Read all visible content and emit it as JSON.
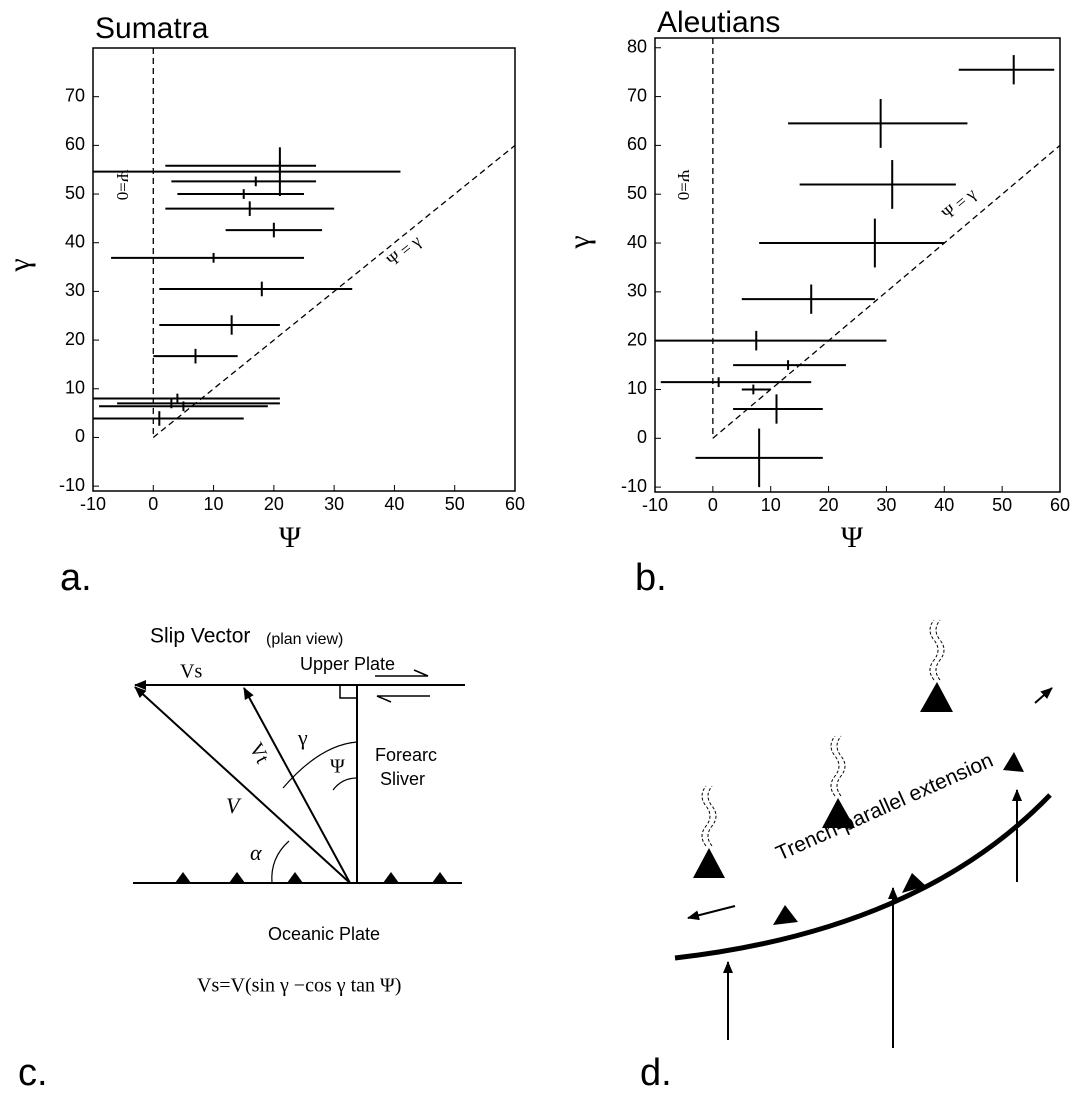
{
  "chart_data": [
    {
      "type": "errorbar",
      "title": "Sumatra",
      "panel_label": "a.",
      "x_label": "Ψ",
      "y_label": "γ",
      "xlim": [
        -10,
        60
      ],
      "ylim": [
        -11,
        80
      ],
      "xticks": [
        -10,
        0,
        10,
        20,
        30,
        40,
        50,
        60
      ],
      "yticks": [
        -10,
        0,
        10,
        20,
        30,
        40,
        50,
        60,
        70
      ],
      "annotations": [
        "Ψ=0",
        "Ψ = γ"
      ],
      "color": "#000000",
      "x": [
        21,
        21,
        17,
        15,
        16,
        20,
        10,
        18,
        13,
        7,
        4,
        3,
        5,
        1
      ],
      "values": [
        54.6,
        55.8,
        52.6,
        50,
        47,
        42.6,
        36.9,
        30.5,
        23.1,
        16.7,
        8,
        7,
        6.4,
        3.9
      ],
      "x_low": [
        -10,
        2,
        3,
        4,
        2,
        12,
        -7,
        1,
        1,
        0,
        -10,
        -6,
        -9,
        -10
      ],
      "x_high": [
        41,
        27,
        27,
        25,
        30,
        28,
        25,
        33,
        21,
        14,
        21,
        21,
        19,
        15
      ],
      "yerr": [
        5,
        1,
        1,
        1,
        1.5,
        1.5,
        1,
        1.5,
        2,
        1.5,
        1,
        1,
        1,
        1.5
      ]
    },
    {
      "type": "errorbar",
      "title": "Aleutians",
      "panel_label": "b.",
      "x_label": "Ψ",
      "y_label": "γ",
      "xlim": [
        -10,
        60
      ],
      "ylim": [
        -11,
        82
      ],
      "xticks": [
        -10,
        0,
        10,
        20,
        30,
        40,
        50,
        60
      ],
      "yticks": [
        -10,
        0,
        10,
        20,
        30,
        40,
        50,
        60,
        70,
        80
      ],
      "annotations": [
        "Ψ=0",
        "Ψ = γ"
      ],
      "color": "#000000",
      "x": [
        52,
        29,
        31,
        28,
        17,
        7.5,
        13,
        1,
        7,
        11,
        8
      ],
      "values": [
        75.5,
        64.5,
        52,
        40,
        28.5,
        20,
        15,
        11.5,
        10,
        6,
        -4
      ],
      "x_low": [
        42.5,
        13,
        15,
        8,
        5,
        -10,
        3.5,
        -9,
        5,
        3.5,
        -3
      ],
      "x_high": [
        59,
        44,
        42,
        40,
        28,
        30,
        23,
        17,
        10,
        19,
        19
      ],
      "yerr": [
        3,
        5,
        5,
        5,
        3,
        2,
        1,
        1,
        1,
        3,
        6
      ]
    }
  ],
  "diagram_c": {
    "title": "Slip Vector",
    "title_note": "(plan view)",
    "upper": "Upper Plate",
    "vs": "Vs",
    "vt": "Vt",
    "gamma": "γ",
    "psi": "Ψ",
    "sliver": [
      "Forearc",
      "Sliver"
    ],
    "v": "V",
    "alpha": "α",
    "oceanic": "Oceanic Plate",
    "formula": "Vs=V(sin γ −cos γ tan Ψ)",
    "panel_label": "c."
  },
  "diagram_d": {
    "extension": "Trench-parallel extension",
    "panel_label": "d."
  }
}
